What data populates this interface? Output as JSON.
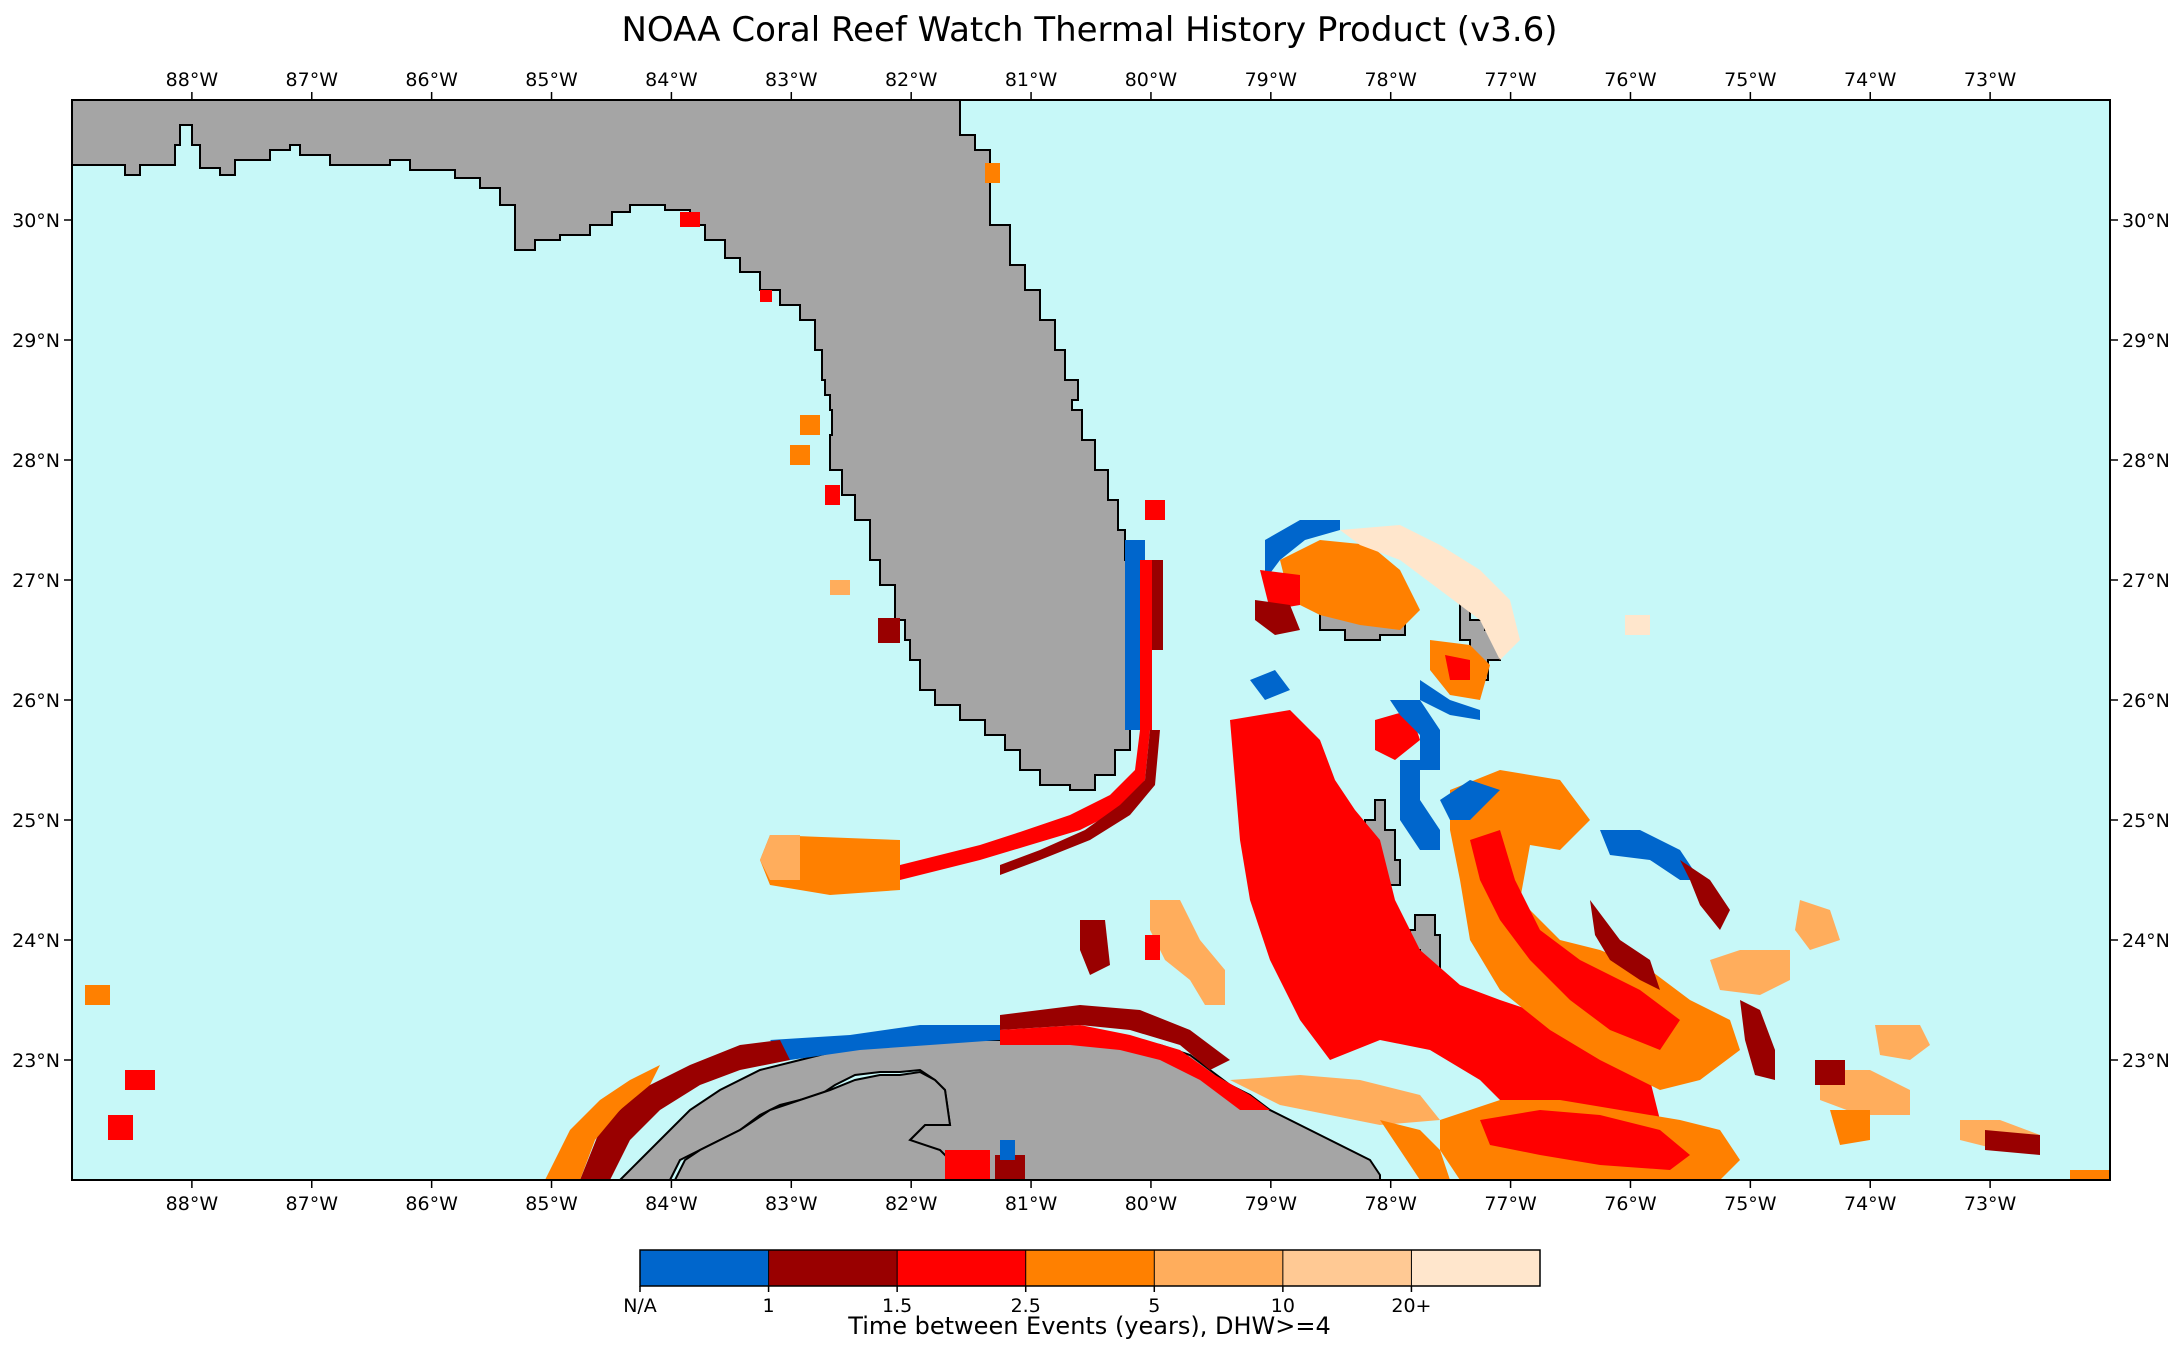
{
  "title": "NOAA Coral Reef Watch Thermal History Product (v3.6)",
  "map": {
    "lon_range": [
      -89,
      -72
    ],
    "lat_range": [
      22,
      31
    ],
    "lon_ticks": [
      "88°W",
      "87°W",
      "86°W",
      "85°W",
      "84°W",
      "83°W",
      "82°W",
      "81°W",
      "80°W",
      "79°W",
      "78°W",
      "77°W",
      "76°W",
      "75°W",
      "74°W",
      "73°W"
    ],
    "lat_ticks": [
      "23°N",
      "24°N",
      "25°N",
      "26°N",
      "27°N",
      "28°N",
      "29°N",
      "30°N"
    ],
    "colors": {
      "ocean": "#c7f8f8",
      "land": "#a5a5a5",
      "coast": "#000000"
    }
  },
  "colorbar": {
    "title": "Time between Events (years), DHW>=4",
    "tick_labels": [
      "N/A",
      "1",
      "1.5",
      "2.5",
      "5",
      "10",
      "20+"
    ],
    "colors": [
      "#0066cc",
      "#990000",
      "#ff0000",
      "#ff8000",
      "#ffad5c",
      "#ffc994",
      "#ffe6cc"
    ]
  }
}
